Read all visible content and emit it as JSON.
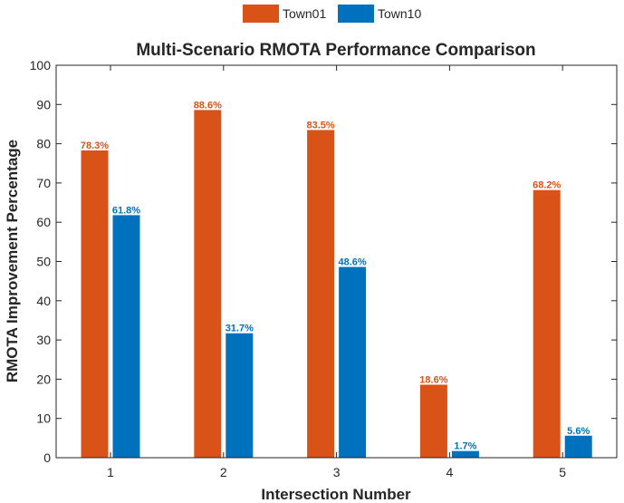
{
  "chart_data": {
    "type": "bar",
    "title": "Multi-Scenario RMOTA Performance Comparison",
    "xlabel": "Intersection Number",
    "ylabel": "RMOTA Improvement Percentage",
    "categories": [
      "1",
      "2",
      "3",
      "4",
      "5"
    ],
    "series": [
      {
        "name": "Town01",
        "color": "#D95319",
        "values": [
          78.3,
          88.6,
          83.5,
          18.6,
          68.2
        ],
        "labels": [
          "78.3%",
          "88.6%",
          "83.5%",
          "18.6%",
          "68.2%"
        ]
      },
      {
        "name": "Town10",
        "color": "#0072BD",
        "values": [
          61.8,
          31.7,
          48.6,
          1.7,
          5.6
        ],
        "labels": [
          "61.8%",
          "31.7%",
          "48.6%",
          "1.7%",
          "5.6%"
        ]
      }
    ],
    "ylim": [
      0,
      100
    ],
    "yticks": [
      "0",
      "10",
      "20",
      "30",
      "40",
      "50",
      "60",
      "70",
      "80",
      "90",
      "100"
    ],
    "legend_position": "top-center, outside",
    "grid": false
  }
}
